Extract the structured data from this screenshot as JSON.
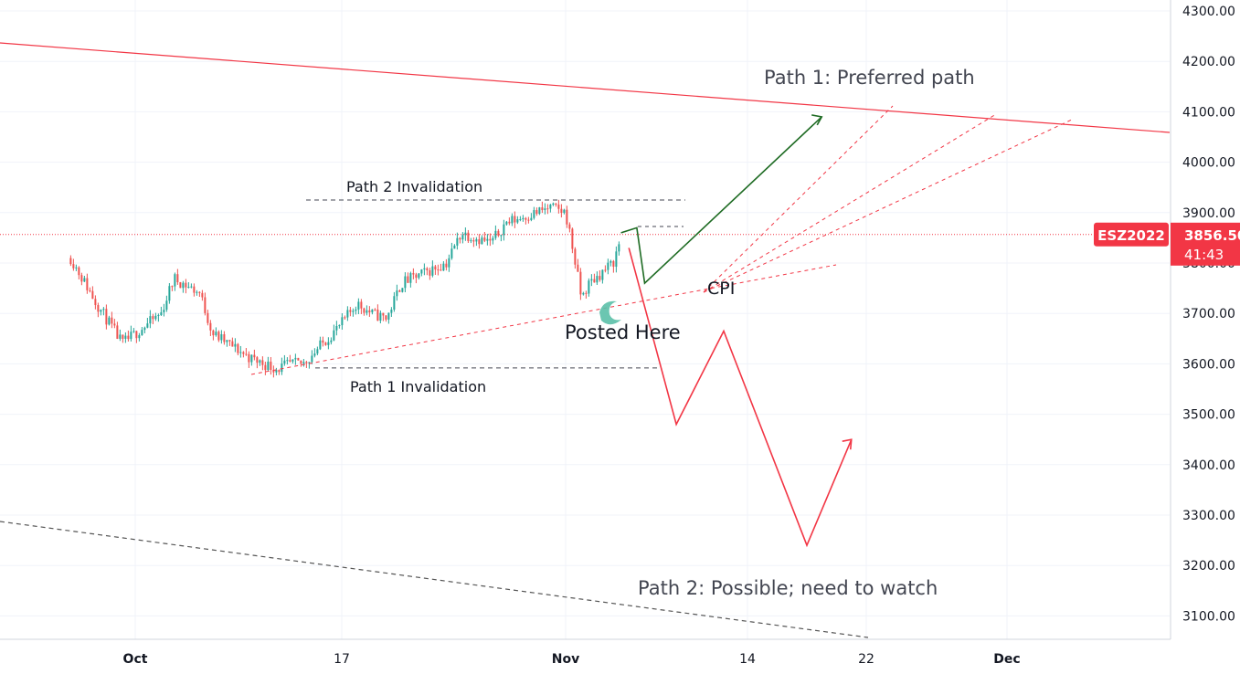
{
  "colors": {
    "background": "#ffffff",
    "grid": "#f0f3fa",
    "axis_text": "#131722",
    "up": "#26a69a",
    "down": "#ef5350",
    "bearish_path": "#f23645",
    "bullish_path": "#1e6b23",
    "price_badge": "#f23645",
    "annotation_dash": "#434651",
    "marker": "#5bc0a8"
  },
  "chart_data": {
    "type": "candlestick",
    "symbol": "ESZ2022",
    "last_price": "3856.50",
    "countdown": "41:43",
    "y_ticks": [
      "4300.00",
      "4200.00",
      "4100.00",
      "4000.00",
      "3900.00",
      "3800.00",
      "3700.00",
      "3600.00",
      "3500.00",
      "3400.00",
      "3300.00",
      "3200.00",
      "3100.00"
    ],
    "x_ticks": [
      "Oct",
      "17",
      "Nov",
      "14",
      "22",
      "Dec"
    ],
    "ylim": [
      3050,
      4330
    ],
    "grid": true,
    "price_path_anchors": [
      [
        "2022-09-26",
        3810
      ],
      [
        "2022-09-28",
        3720
      ],
      [
        "2022-09-30",
        3640
      ],
      [
        "2022-10-03",
        3700
      ],
      [
        "2022-10-04",
        3770
      ],
      [
        "2022-10-06",
        3740
      ],
      [
        "2022-10-07",
        3660
      ],
      [
        "2022-10-10",
        3610
      ],
      [
        "2022-10-11",
        3600
      ],
      [
        "2022-10-12",
        3590
      ],
      [
        "2022-10-13",
        3600
      ],
      [
        "2022-10-14",
        3600
      ],
      [
        "2022-10-17",
        3680
      ],
      [
        "2022-10-18",
        3720
      ],
      [
        "2022-10-19",
        3700
      ],
      [
        "2022-10-20",
        3690
      ],
      [
        "2022-10-21",
        3760
      ],
      [
        "2022-10-24",
        3800
      ],
      [
        "2022-10-25",
        3860
      ],
      [
        "2022-10-26",
        3850
      ],
      [
        "2022-10-27",
        3840
      ],
      [
        "2022-10-28",
        3880
      ],
      [
        "2022-10-31",
        3910
      ],
      [
        "2022-11-01",
        3900
      ],
      [
        "2022-11-02",
        3820
      ],
      [
        "2022-11-03",
        3730
      ],
      [
        "2022-11-04",
        3760
      ],
      [
        "2022-11-07",
        3800
      ],
      [
        "2022-11-08",
        3850
      ]
    ],
    "annotations": {
      "path1_label": "Path 1: Preferred path",
      "path2_label": "Path 2: Possible; need to watch",
      "path1_invalidation_label": "Path 1 Invalidation",
      "path2_invalidation_label": "Path 2 Invalidation",
      "posted_here_label": "Posted Here",
      "cpi_label": "CPI",
      "path1_invalidation_level": 3592,
      "path2_invalidation_level": 3925,
      "path1_points": [
        [
          "2022-11-08",
          3860
        ],
        [
          "2022-11-10",
          3870
        ],
        [
          "2022-11-11",
          3760
        ],
        [
          "2022-11-29",
          4090
        ]
      ],
      "path2_points": [
        [
          "2022-11-09",
          3830
        ],
        [
          "2022-11-15",
          3480
        ],
        [
          "2022-11-21",
          3665
        ],
        [
          "2022-11-28",
          3240
        ],
        [
          "2022-12-01",
          3450
        ]
      ]
    }
  }
}
